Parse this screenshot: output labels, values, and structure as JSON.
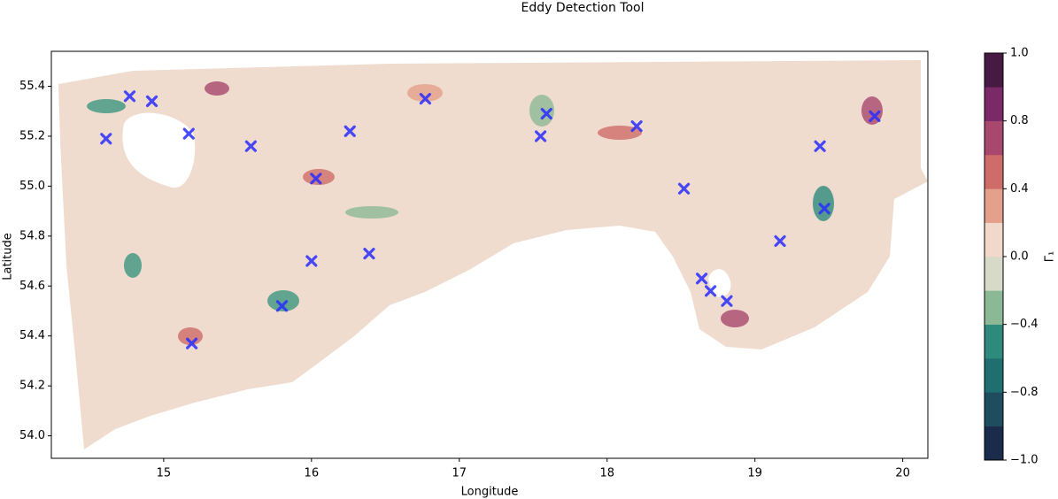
{
  "chart_data": {
    "type": "scatter",
    "title": "Eddy Detection Tool",
    "x_label": "Longitude",
    "y_label": "Latitude",
    "x": [
      14.77,
      14.92,
      14.61,
      15.17,
      15.59,
      16.26,
      16.03,
      16.77,
      17.59,
      17.55,
      18.2,
      19.44,
      19.81,
      18.52,
      19.47,
      19.17,
      16.39,
      16.0,
      15.8,
      15.19,
      18.64,
      18.7,
      18.81
    ],
    "y": [
      55.36,
      55.34,
      55.19,
      55.21,
      55.16,
      55.22,
      55.03,
      55.35,
      55.29,
      55.2,
      55.24,
      55.16,
      55.28,
      54.99,
      54.91,
      54.78,
      54.73,
      54.7,
      54.52,
      54.37,
      54.63,
      54.58,
      54.54
    ],
    "color": "#2a2cff",
    "xlim": [
      14.24,
      20.17
    ],
    "ylim": [
      53.91,
      55.54
    ],
    "xticks": [
      15,
      16,
      17,
      18,
      19,
      20
    ],
    "yticks": [
      {
        "value": 54,
        "label": "54.0"
      },
      54.2,
      54.4,
      54.6,
      54.8,
      {
        "value": 55,
        "label": "55.0"
      },
      55.2,
      55.4
    ],
    "colorbar": {
      "label": "Γ₁",
      "levels": [
        -1,
        -0.9,
        -0.8,
        -0.6,
        -0.4,
        -0.2,
        0,
        0.2,
        0.4,
        0.6,
        0.8,
        0.9,
        1
      ],
      "colors": [
        "#1b2b4b",
        "#1e4d60",
        "#206f70",
        "#2e8a7d",
        "#8cb995",
        "#d6dac6",
        "#f2d8cb",
        "#e3a08a",
        "#cf6b68",
        "#a9486e",
        "#7a2a66",
        "#471a43"
      ],
      "ticks": [
        {
          "value": -1,
          "label": "−1.0"
        },
        {
          "value": -0.8,
          "label": "−0.8"
        },
        {
          "value": -0.4,
          "label": "−0.4"
        },
        {
          "value": 0,
          "label": "0.0"
        },
        {
          "value": 0.4,
          "label": "0.4"
        },
        {
          "value": 0.8,
          "label": "0.8"
        },
        {
          "value": 1,
          "label": "1.0"
        }
      ]
    }
  }
}
